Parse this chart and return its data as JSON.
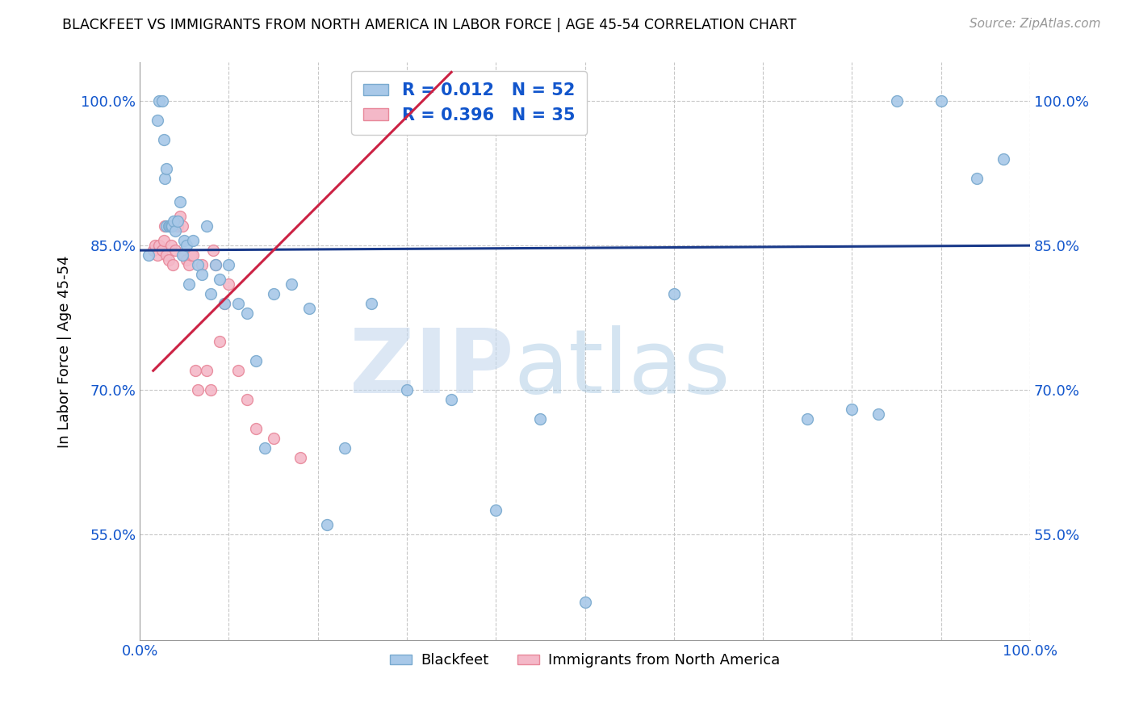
{
  "title": "BLACKFEET VS IMMIGRANTS FROM NORTH AMERICA IN LABOR FORCE | AGE 45-54 CORRELATION CHART",
  "source": "Source: ZipAtlas.com",
  "ylabel": "In Labor Force | Age 45-54",
  "xlim": [
    0.0,
    1.0
  ],
  "ylim": [
    0.44,
    1.04
  ],
  "yticks": [
    0.55,
    0.7,
    0.85,
    1.0
  ],
  "ytick_labels": [
    "55.0%",
    "70.0%",
    "85.0%",
    "100.0%"
  ],
  "xticks": [
    0.0,
    0.1,
    0.2,
    0.3,
    0.4,
    0.5,
    0.6,
    0.7,
    0.8,
    0.9,
    1.0
  ],
  "xtick_labels": [
    "0.0%",
    "",
    "",
    "",
    "",
    "",
    "",
    "",
    "",
    "",
    "100.0%"
  ],
  "blue_color": "#a8c8e8",
  "pink_color": "#f4b8c8",
  "blue_edge": "#7aaacf",
  "pink_edge": "#e8889a",
  "line_blue": "#1a3a8a",
  "line_pink": "#cc2244",
  "R_blue": "0.012",
  "N_blue": "52",
  "R_pink": "0.396",
  "N_pink": "35",
  "watermark": "ZIPatlas",
  "background_color": "#ffffff",
  "blue_points_x": [
    0.01,
    0.02,
    0.022,
    0.025,
    0.027,
    0.028,
    0.03,
    0.03,
    0.032,
    0.033,
    0.035,
    0.036,
    0.038,
    0.04,
    0.042,
    0.045,
    0.048,
    0.05,
    0.052,
    0.055,
    0.06,
    0.065,
    0.07,
    0.075,
    0.08,
    0.085,
    0.09,
    0.095,
    0.1,
    0.11,
    0.12,
    0.13,
    0.14,
    0.15,
    0.17,
    0.19,
    0.21,
    0.23,
    0.26,
    0.3,
    0.35,
    0.4,
    0.45,
    0.5,
    0.6,
    0.75,
    0.8,
    0.83,
    0.85,
    0.9,
    0.94,
    0.97
  ],
  "blue_points_y": [
    0.84,
    0.98,
    1.0,
    1.0,
    0.96,
    0.92,
    0.93,
    0.87,
    0.87,
    0.87,
    0.87,
    0.87,
    0.875,
    0.865,
    0.875,
    0.895,
    0.84,
    0.855,
    0.85,
    0.81,
    0.855,
    0.83,
    0.82,
    0.87,
    0.8,
    0.83,
    0.815,
    0.79,
    0.83,
    0.79,
    0.78,
    0.73,
    0.64,
    0.8,
    0.81,
    0.785,
    0.56,
    0.64,
    0.79,
    0.7,
    0.69,
    0.575,
    0.67,
    0.48,
    0.8,
    0.67,
    0.68,
    0.675,
    1.0,
    1.0,
    0.92,
    0.94
  ],
  "pink_points_x": [
    0.015,
    0.017,
    0.02,
    0.022,
    0.025,
    0.027,
    0.028,
    0.03,
    0.032,
    0.035,
    0.037,
    0.04,
    0.042,
    0.045,
    0.048,
    0.05,
    0.052,
    0.055,
    0.058,
    0.06,
    0.062,
    0.065,
    0.07,
    0.075,
    0.08,
    0.082,
    0.085,
    0.09,
    0.095,
    0.1,
    0.11,
    0.12,
    0.13,
    0.15,
    0.18
  ],
  "pink_points_y": [
    0.845,
    0.85,
    0.84,
    0.85,
    0.845,
    0.855,
    0.87,
    0.84,
    0.835,
    0.85,
    0.83,
    0.845,
    0.87,
    0.88,
    0.87,
    0.84,
    0.835,
    0.83,
    0.84,
    0.84,
    0.72,
    0.7,
    0.83,
    0.72,
    0.7,
    0.845,
    0.83,
    0.75,
    0.79,
    0.81,
    0.72,
    0.69,
    0.66,
    0.65,
    0.63
  ],
  "pink_line_x0": 0.015,
  "pink_line_x1": 0.35,
  "pink_line_y0": 0.72,
  "pink_line_y1": 1.03,
  "blue_line_x0": 0.0,
  "blue_line_x1": 1.0,
  "blue_line_y0": 0.845,
  "blue_line_y1": 0.85
}
